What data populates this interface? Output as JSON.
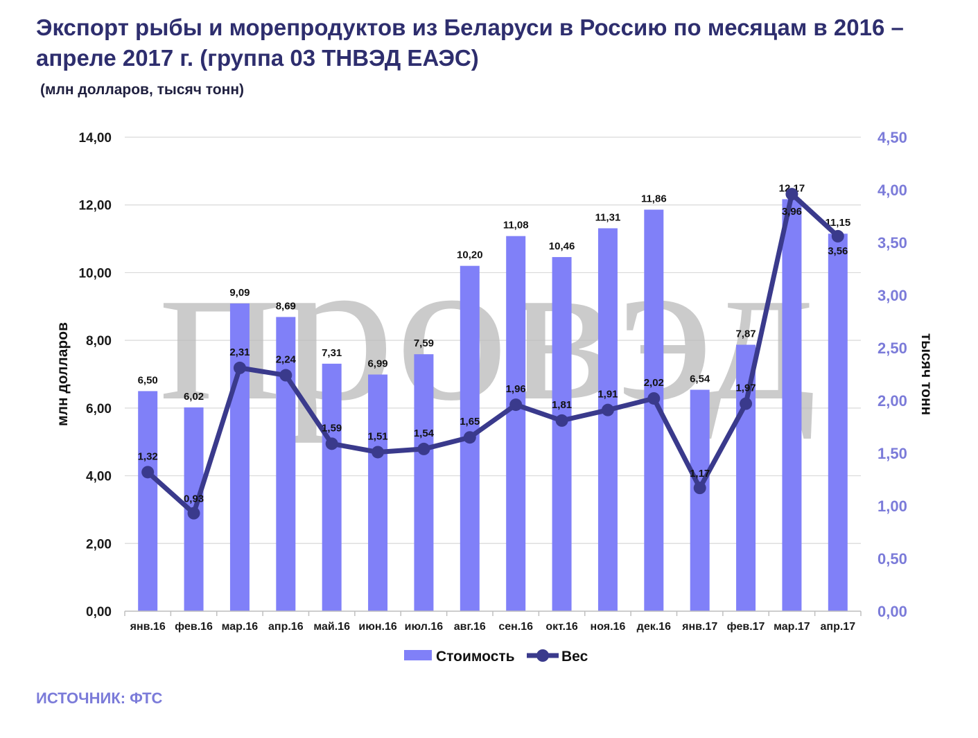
{
  "title": "Экспорт рыбы и морепродуктов из Беларуси в Россию по месяцам в 2016 – апреле 2017 г. (группа 03 ТНВЭД ЕАЭС)",
  "subtitle": "(млн долларов, тысяч тонн)",
  "source": "ИСТОЧНИК: ФТС",
  "watermark": "ПРОВЭД",
  "colors": {
    "bar": "#8080f8",
    "line": "#3a3a8c",
    "right_axis": "#7b7bd9",
    "grid": "#d9d9d9"
  },
  "chart_data": {
    "type": "bar",
    "categories": [
      "янв.16",
      "фев.16",
      "мар.16",
      "апр.16",
      "май.16",
      "июн.16",
      "июл.16",
      "авг.16",
      "сен.16",
      "окт.16",
      "ноя.16",
      "дек.16",
      "янв.17",
      "фев.17",
      "мар.17",
      "апр.17"
    ],
    "ylabel": "млн долларов",
    "ylabel_right": "тысяч тонн",
    "ylim": [
      0,
      14
    ],
    "ylim_right": [
      0,
      4.5
    ],
    "yticks": [
      "0,00",
      "2,00",
      "4,00",
      "6,00",
      "8,00",
      "10,00",
      "12,00",
      "14,00"
    ],
    "yticks_right": [
      "0,00",
      "0,50",
      "1,00",
      "1,50",
      "2,00",
      "2,50",
      "3,00",
      "3,50",
      "4,00",
      "4,50"
    ],
    "grid": true,
    "legend": "bottom",
    "series": [
      {
        "name": "Стоимость",
        "type": "bar",
        "axis": "left",
        "values": [
          6.5,
          6.02,
          9.09,
          8.69,
          7.31,
          6.99,
          7.59,
          10.2,
          11.08,
          10.46,
          11.31,
          11.86,
          6.54,
          7.87,
          12.17,
          11.15
        ],
        "labels": [
          "6,50",
          "6,02",
          "9,09",
          "8,69",
          "7,31",
          "6,99",
          "7,59",
          "10,20",
          "11,08",
          "10,46",
          "11,31",
          "11,86",
          "6,54",
          "7,87",
          "12,17",
          "11,15"
        ]
      },
      {
        "name": "Вес",
        "type": "line",
        "axis": "right",
        "values": [
          1.32,
          0.93,
          2.31,
          2.24,
          1.59,
          1.51,
          1.54,
          1.65,
          1.96,
          1.81,
          1.91,
          2.02,
          1.17,
          1.97,
          3.96,
          3.56
        ],
        "labels": [
          "1,32",
          "0,93",
          "2,31",
          "2,24",
          "1,59",
          "1,51",
          "1,54",
          "1,65",
          "1,96",
          "1,81",
          "1,91",
          "2,02",
          "1,17",
          "1,97",
          "3,96",
          "3,56"
        ]
      }
    ]
  }
}
